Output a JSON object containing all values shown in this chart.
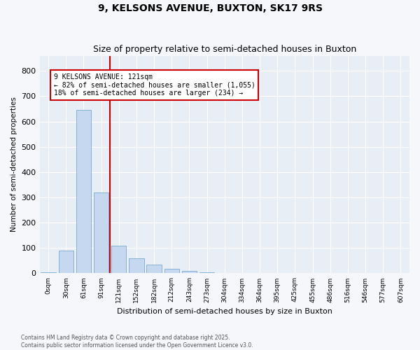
{
  "title": "9, KELSONS AVENUE, BUXTON, SK17 9RS",
  "subtitle": "Size of property relative to semi-detached houses in Buxton",
  "xlabel": "Distribution of semi-detached houses by size in Buxton",
  "ylabel": "Number of semi-detached properties",
  "bar_labels": [
    "0sqm",
    "30sqm",
    "61sqm",
    "91sqm",
    "121sqm",
    "152sqm",
    "182sqm",
    "212sqm",
    "243sqm",
    "273sqm",
    "304sqm",
    "334sqm",
    "364sqm",
    "395sqm",
    "425sqm",
    "455sqm",
    "486sqm",
    "516sqm",
    "546sqm",
    "577sqm",
    "607sqm"
  ],
  "bar_values": [
    5,
    90,
    645,
    320,
    110,
    60,
    35,
    18,
    10,
    5,
    2,
    1,
    0,
    0,
    0,
    0,
    0,
    0,
    0,
    0,
    0
  ],
  "bar_color": "#c5d8ef",
  "bar_edge_color": "#7aaad0",
  "red_line_index": 4,
  "annotation_title": "9 KELSONS AVENUE: 121sqm",
  "annotation_line1": "← 82% of semi-detached houses are smaller (1,055)",
  "annotation_line2": "18% of semi-detached houses are larger (234) →",
  "annotation_box_color": "#cc0000",
  "ylim": [
    0,
    860
  ],
  "yticks": [
    0,
    100,
    200,
    300,
    400,
    500,
    600,
    700,
    800
  ],
  "fig_bg_color": "#f5f7fa",
  "plot_bg_color": "#e8eef5",
  "grid_color": "#ffffff",
  "title_fontsize": 10,
  "subtitle_fontsize": 9,
  "footer_line1": "Contains HM Land Registry data © Crown copyright and database right 2025.",
  "footer_line2": "Contains public sector information licensed under the Open Government Licence v3.0."
}
